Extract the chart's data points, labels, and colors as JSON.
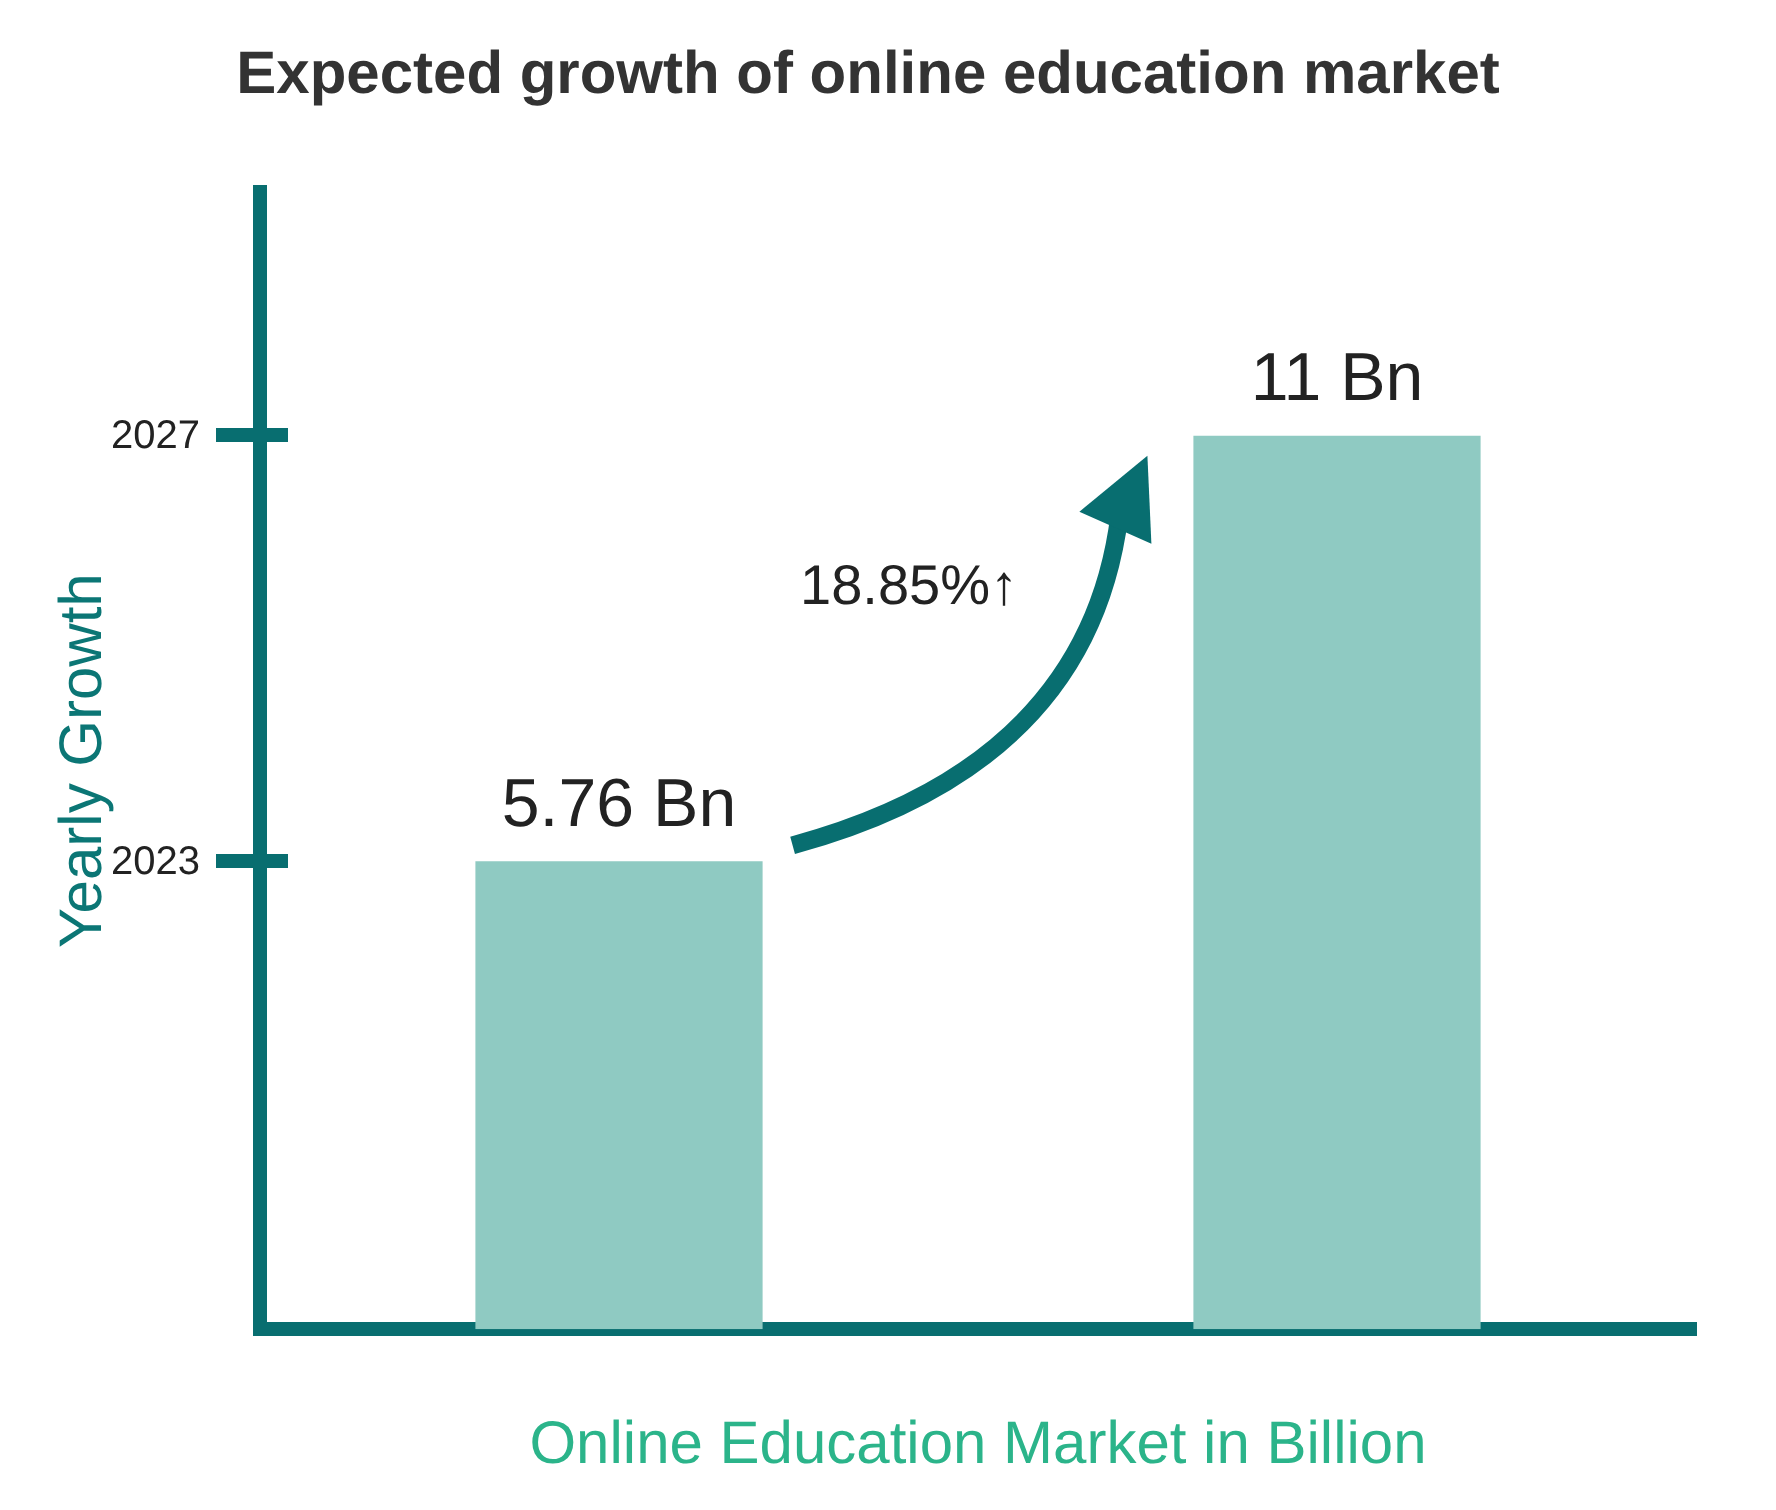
{
  "chart_data": {
    "type": "bar",
    "title": "Expected growth of online education market",
    "xlabel": "Online Education Market in Billion",
    "ylabel": "Yearly Growth",
    "categories": [
      null,
      null
    ],
    "values": [
      5.76,
      11
    ],
    "color": "#8fcac2",
    "value_labels": [
      "5.76 Bn",
      "11 Bn"
    ],
    "grid": false,
    "annotations": [
      "18.85%↑",
      "2023",
      "2027"
    ]
  }
}
